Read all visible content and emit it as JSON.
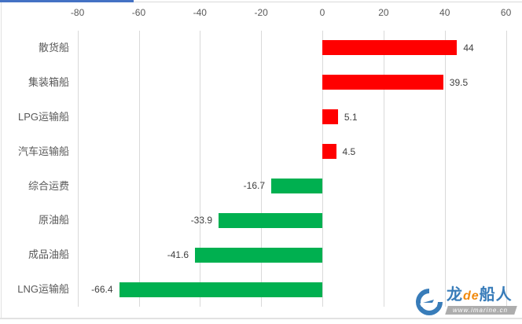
{
  "chart_data": {
    "type": "bar",
    "orientation": "horizontal",
    "title": "",
    "xlabel": "",
    "ylabel": "",
    "categories": [
      "散货船",
      "集装箱船",
      "LPG运输船",
      "汽车运输船",
      "综合运费",
      "原油船",
      "成品油船",
      "LNG运输船"
    ],
    "values": [
      44,
      39.5,
      5.1,
      4.5,
      -16.7,
      -33.9,
      -41.6,
      -66.4
    ],
    "value_labels": [
      "44",
      "39.5",
      "5.1",
      "4.5",
      "-16.7",
      "-33.9",
      "-41.6",
      "-66.4"
    ],
    "x_ticks": [
      -80,
      -60,
      -40,
      -20,
      0,
      20,
      40,
      60
    ],
    "x_tick_labels": [
      "-80",
      "-60",
      "-40",
      "-20",
      "0",
      "20",
      "40",
      "60"
    ],
    "xlim": [
      -80,
      60
    ],
    "grid": true,
    "legend": false,
    "positive_color": "#FF0000",
    "negative_color": "#00B050",
    "gridline_color": "#d9d9d9",
    "tick_label_color": "#595959",
    "category_label_color": "#595959",
    "value_label_color": "#404040"
  },
  "frame": {
    "top_accent_color": "#4472C4"
  },
  "watermark": {
    "brand_zh_1": "龙",
    "brand_de": "de",
    "brand_zh_2": "船人",
    "url": "www.imarine.cn",
    "blue": "#2E75B6",
    "orange": "#F08300"
  }
}
